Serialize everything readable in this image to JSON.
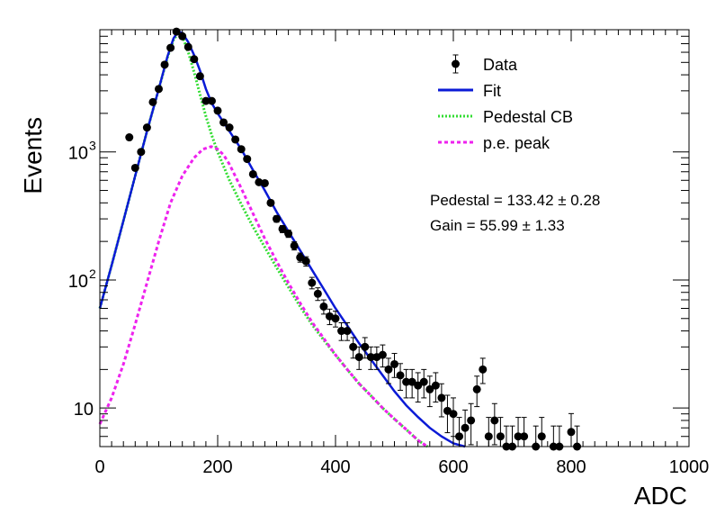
{
  "chart_data": {
    "type": "scatter",
    "xlabel": "ADC",
    "ylabel": "Events",
    "xlim": [
      0,
      1000
    ],
    "ylim": [
      5,
      9000
    ],
    "y_scale": "log",
    "grid": false,
    "legend_position": "top-right",
    "x_ticks": [
      0,
      200,
      400,
      600,
      800,
      1000
    ],
    "y_ticks": [
      {
        "value": 10,
        "label": "10"
      },
      {
        "value": 100,
        "label": "10",
        "exp": "2"
      },
      {
        "value": 1000,
        "label": "10",
        "exp": "3"
      }
    ],
    "annotations": [
      {
        "text": "Pedestal = 133.42 ± 0.28"
      },
      {
        "text": "Gain = 55.99 ± 1.33"
      }
    ],
    "legend": [
      {
        "label": "Data",
        "style": "marker",
        "color": "#000000"
      },
      {
        "label": "Fit",
        "style": "solid",
        "color": "#0a1ad6"
      },
      {
        "label": "Pedestal CB",
        "style": "dotted",
        "color": "#33dd33"
      },
      {
        "label": "p.e. peak",
        "style": "dashed",
        "color": "#ee22ee"
      }
    ],
    "series": [
      {
        "name": "Data",
        "kind": "points",
        "color": "#000000",
        "points": [
          [
            50,
            1300
          ],
          [
            60,
            750
          ],
          [
            70,
            1000
          ],
          [
            80,
            1550
          ],
          [
            90,
            2450
          ],
          [
            100,
            3100
          ],
          [
            110,
            4800
          ],
          [
            120,
            6500
          ],
          [
            130,
            8700
          ],
          [
            140,
            8000
          ],
          [
            150,
            6600
          ],
          [
            160,
            5300
          ],
          [
            170,
            3900
          ],
          [
            180,
            2500
          ],
          [
            190,
            2500
          ],
          [
            200,
            2100
          ],
          [
            210,
            1700
          ],
          [
            220,
            1550
          ],
          [
            230,
            1250
          ],
          [
            240,
            1050
          ],
          [
            250,
            880
          ],
          [
            260,
            670
          ],
          [
            270,
            580
          ],
          [
            280,
            570
          ],
          [
            290,
            400
          ],
          [
            300,
            300
          ],
          [
            310,
            250
          ],
          [
            320,
            230
          ],
          [
            330,
            185
          ],
          [
            340,
            150
          ],
          [
            350,
            140
          ],
          [
            360,
            95
          ],
          [
            370,
            78
          ],
          [
            380,
            62
          ],
          [
            390,
            52
          ],
          [
            400,
            50
          ],
          [
            410,
            40
          ],
          [
            420,
            40
          ],
          [
            430,
            30
          ],
          [
            440,
            25
          ],
          [
            450,
            30
          ],
          [
            460,
            25
          ],
          [
            470,
            25
          ],
          [
            480,
            26
          ],
          [
            490,
            20
          ],
          [
            500,
            22
          ],
          [
            510,
            18
          ],
          [
            520,
            16
          ],
          [
            530,
            16
          ],
          [
            540,
            15
          ],
          [
            550,
            16
          ],
          [
            560,
            14
          ],
          [
            570,
            15
          ],
          [
            580,
            12
          ],
          [
            590,
            9.5
          ],
          [
            600,
            9
          ],
          [
            610,
            6
          ],
          [
            620,
            7
          ],
          [
            630,
            8
          ],
          [
            640,
            14
          ],
          [
            650,
            20
          ],
          [
            660,
            6
          ],
          [
            670,
            8
          ],
          [
            680,
            6
          ],
          [
            690,
            5
          ],
          [
            700,
            5
          ],
          [
            710,
            6
          ],
          [
            720,
            6
          ],
          [
            740,
            5
          ],
          [
            750,
            6
          ],
          [
            770,
            5
          ],
          [
            780,
            5
          ],
          [
            800,
            6.5
          ],
          [
            810,
            5
          ]
        ]
      },
      {
        "name": "Fit",
        "kind": "line",
        "color": "#0a1ad6",
        "points": [
          [
            0,
            60
          ],
          [
            20,
            130
          ],
          [
            40,
            290
          ],
          [
            60,
            650
          ],
          [
            80,
            1450
          ],
          [
            100,
            3100
          ],
          [
            115,
            5600
          ],
          [
            125,
            7700
          ],
          [
            133,
            8700
          ],
          [
            140,
            8500
          ],
          [
            150,
            7200
          ],
          [
            160,
            5700
          ],
          [
            170,
            4300
          ],
          [
            180,
            3100
          ],
          [
            190,
            2400
          ],
          [
            200,
            2000
          ],
          [
            220,
            1450
          ],
          [
            240,
            1050
          ],
          [
            260,
            720
          ],
          [
            280,
            500
          ],
          [
            300,
            340
          ],
          [
            320,
            240
          ],
          [
            340,
            170
          ],
          [
            360,
            120
          ],
          [
            380,
            85
          ],
          [
            400,
            60
          ],
          [
            420,
            44
          ],
          [
            440,
            32
          ],
          [
            460,
            24
          ],
          [
            480,
            18
          ],
          [
            500,
            13.5
          ],
          [
            520,
            10.5
          ],
          [
            540,
            8.5
          ],
          [
            560,
            7
          ],
          [
            580,
            6
          ],
          [
            600,
            5.3
          ],
          [
            620,
            4.8
          ]
        ]
      },
      {
        "name": "Pedestal CB",
        "kind": "line",
        "color": "#33dd33",
        "points": [
          [
            0,
            60
          ],
          [
            20,
            130
          ],
          [
            40,
            290
          ],
          [
            60,
            650
          ],
          [
            80,
            1450
          ],
          [
            100,
            3100
          ],
          [
            115,
            5500
          ],
          [
            125,
            7500
          ],
          [
            133,
            8500
          ],
          [
            140,
            8000
          ],
          [
            150,
            6000
          ],
          [
            160,
            4200
          ],
          [
            170,
            2800
          ],
          [
            180,
            1900
          ],
          [
            190,
            1350
          ],
          [
            200,
            1000
          ],
          [
            220,
            600
          ],
          [
            240,
            390
          ],
          [
            260,
            260
          ],
          [
            280,
            180
          ],
          [
            300,
            125
          ],
          [
            320,
            88
          ],
          [
            340,
            62
          ],
          [
            360,
            45
          ],
          [
            380,
            34
          ],
          [
            400,
            26
          ],
          [
            420,
            20
          ],
          [
            440,
            15.5
          ],
          [
            460,
            12.5
          ],
          [
            480,
            10
          ],
          [
            500,
            8.2
          ],
          [
            520,
            6.8
          ],
          [
            540,
            5.6
          ],
          [
            556,
            5
          ]
        ]
      },
      {
        "name": "p.e. peak",
        "kind": "line",
        "color": "#ee22ee",
        "points": [
          [
            0,
            7.5
          ],
          [
            20,
            12
          ],
          [
            40,
            22
          ],
          [
            60,
            45
          ],
          [
            80,
            95
          ],
          [
            100,
            200
          ],
          [
            120,
            400
          ],
          [
            140,
            650
          ],
          [
            160,
            900
          ],
          [
            175,
            1050
          ],
          [
            189,
            1100
          ],
          [
            200,
            1050
          ],
          [
            210,
            950
          ],
          [
            220,
            800
          ],
          [
            240,
            520
          ],
          [
            260,
            330
          ],
          [
            280,
            210
          ],
          [
            300,
            140
          ],
          [
            320,
            95
          ],
          [
            340,
            66
          ],
          [
            360,
            47
          ],
          [
            380,
            35
          ],
          [
            400,
            26
          ],
          [
            420,
            20
          ],
          [
            440,
            15.5
          ],
          [
            460,
            12.5
          ],
          [
            480,
            10
          ],
          [
            500,
            8.2
          ],
          [
            520,
            6.8
          ],
          [
            540,
            5.6
          ],
          [
            556,
            5
          ]
        ]
      }
    ]
  }
}
